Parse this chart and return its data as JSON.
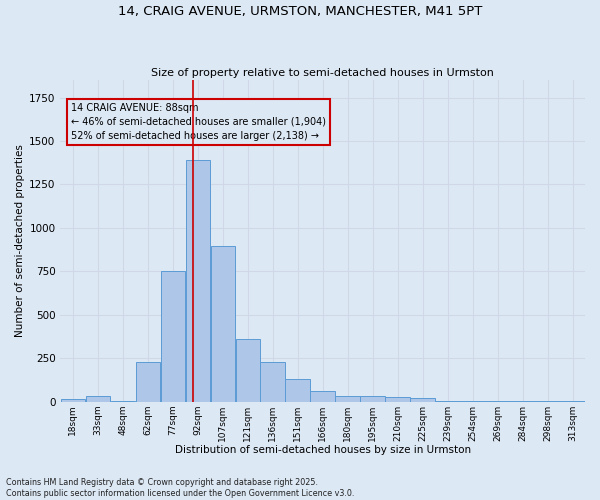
{
  "title": "14, CRAIG AVENUE, URMSTON, MANCHESTER, M41 5PT",
  "subtitle": "Size of property relative to semi-detached houses in Urmston",
  "xlabel": "Distribution of semi-detached houses by size in Urmston",
  "ylabel": "Number of semi-detached properties",
  "footer_line1": "Contains HM Land Registry data © Crown copyright and database right 2025.",
  "footer_line2": "Contains public sector information licensed under the Open Government Licence v3.0.",
  "bin_labels": [
    "18sqm",
    "33sqm",
    "48sqm",
    "62sqm",
    "77sqm",
    "92sqm",
    "107sqm",
    "121sqm",
    "136sqm",
    "151sqm",
    "166sqm",
    "180sqm",
    "195sqm",
    "210sqm",
    "225sqm",
    "239sqm",
    "254sqm",
    "269sqm",
    "284sqm",
    "298sqm",
    "313sqm"
  ],
  "bar_values": [
    15,
    30,
    5,
    230,
    750,
    1390,
    895,
    360,
    230,
    130,
    60,
    30,
    30,
    25,
    20,
    5,
    5,
    5,
    5,
    5,
    5
  ],
  "bar_color": "#aec6e8",
  "bar_edge_color": "#5b9bd5",
  "grid_color": "#d0d8e8",
  "background_color": "#dde8f5",
  "annotation_text": "14 CRAIG AVENUE: 88sqm\n← 46% of semi-detached houses are smaller (1,904)\n52% of semi-detached houses are larger (2,138) →",
  "annotation_box_edge": "#cc0000",
  "vline_color": "#cc0000",
  "vline_x_bin_index": 5,
  "ylim": [
    0,
    1850
  ],
  "bin_width": 1,
  "n_bins": 21
}
